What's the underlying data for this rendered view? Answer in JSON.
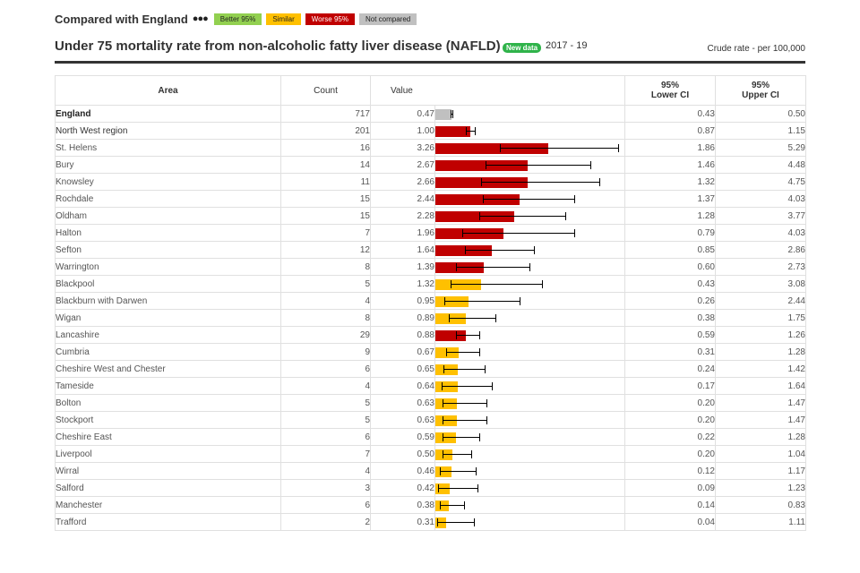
{
  "legend": {
    "title": "Compared with England",
    "menu_icon": "three-dots-menu-icon",
    "keys": [
      {
        "label": "Better 95%",
        "color": "#92d050"
      },
      {
        "label": "Similar",
        "color": "#ffc000"
      },
      {
        "label": "Worse 95%",
        "color": "#c00000",
        "text_color": "#ffffff"
      },
      {
        "label": "Not compared",
        "color": "#c0c0c0"
      }
    ]
  },
  "header": {
    "title": "Under 75 mortality rate from non-alcoholic fatty liver disease (NAFLD)",
    "badge": "New data",
    "period": "2017 - 19",
    "value_note": "Crude rate - per 100,000"
  },
  "columns": {
    "area": "Area",
    "count": "Count",
    "value": "Value",
    "lower_ci": [
      "95%",
      "Lower CI"
    ],
    "upper_ci": [
      "95%",
      "Upper CI"
    ]
  },
  "chart_data": {
    "type": "bar",
    "orientation": "horizontal",
    "x_range": [
      0,
      5.5
    ],
    "status_colors": {
      "worse": "#c00000",
      "similar": "#ffc000",
      "better": "#92d050",
      "none": "#c0c0c0"
    },
    "rows": [
      {
        "area": "England",
        "count": "717",
        "value": 0.47,
        "value_text": "0.47",
        "lower": "0.43",
        "upper": "0.50",
        "status": "none",
        "style": "bold"
      },
      {
        "area": "North West region",
        "count": "201",
        "value": 1.0,
        "value_text": "1.00",
        "lower": "0.87",
        "upper": "1.15",
        "status": "worse",
        "style": "plain"
      },
      {
        "area": "St. Helens",
        "count": "16",
        "value": 3.26,
        "value_text": "3.26",
        "lower": "1.86",
        "upper": "5.29",
        "status": "worse",
        "style": "link"
      },
      {
        "area": "Bury",
        "count": "14",
        "value": 2.67,
        "value_text": "2.67",
        "lower": "1.46",
        "upper": "4.48",
        "status": "worse",
        "style": "link"
      },
      {
        "area": "Knowsley",
        "count": "11",
        "value": 2.66,
        "value_text": "2.66",
        "lower": "1.32",
        "upper": "4.75",
        "status": "worse",
        "style": "link"
      },
      {
        "area": "Rochdale",
        "count": "15",
        "value": 2.44,
        "value_text": "2.44",
        "lower": "1.37",
        "upper": "4.03",
        "status": "worse",
        "style": "link"
      },
      {
        "area": "Oldham",
        "count": "15",
        "value": 2.28,
        "value_text": "2.28",
        "lower": "1.28",
        "upper": "3.77",
        "status": "worse",
        "style": "link"
      },
      {
        "area": "Halton",
        "count": "7",
        "value": 1.96,
        "value_text": "1.96",
        "lower": "0.79",
        "upper": "4.03",
        "status": "worse",
        "style": "link"
      },
      {
        "area": "Sefton",
        "count": "12",
        "value": 1.64,
        "value_text": "1.64",
        "lower": "0.85",
        "upper": "2.86",
        "status": "worse",
        "style": "link"
      },
      {
        "area": "Warrington",
        "count": "8",
        "value": 1.39,
        "value_text": "1.39",
        "lower": "0.60",
        "upper": "2.73",
        "status": "worse",
        "style": "link"
      },
      {
        "area": "Blackpool",
        "count": "5",
        "value": 1.32,
        "value_text": "1.32",
        "lower": "0.43",
        "upper": "3.08",
        "status": "similar",
        "style": "link"
      },
      {
        "area": "Blackburn with Darwen",
        "count": "4",
        "value": 0.95,
        "value_text": "0.95",
        "lower": "0.26",
        "upper": "2.44",
        "status": "similar",
        "style": "link"
      },
      {
        "area": "Wigan",
        "count": "8",
        "value": 0.89,
        "value_text": "0.89",
        "lower": "0.38",
        "upper": "1.75",
        "status": "similar",
        "style": "link"
      },
      {
        "area": "Lancashire",
        "count": "29",
        "value": 0.88,
        "value_text": "0.88",
        "lower": "0.59",
        "upper": "1.26",
        "status": "worse",
        "style": "link"
      },
      {
        "area": "Cumbria",
        "count": "9",
        "value": 0.67,
        "value_text": "0.67",
        "lower": "0.31",
        "upper": "1.28",
        "status": "similar",
        "style": "link"
      },
      {
        "area": "Cheshire West and Chester",
        "count": "6",
        "value": 0.65,
        "value_text": "0.65",
        "lower": "0.24",
        "upper": "1.42",
        "status": "similar",
        "style": "link"
      },
      {
        "area": "Tameside",
        "count": "4",
        "value": 0.64,
        "value_text": "0.64",
        "lower": "0.17",
        "upper": "1.64",
        "status": "similar",
        "style": "link"
      },
      {
        "area": "Bolton",
        "count": "5",
        "value": 0.63,
        "value_text": "0.63",
        "lower": "0.20",
        "upper": "1.47",
        "status": "similar",
        "style": "link"
      },
      {
        "area": "Stockport",
        "count": "5",
        "value": 0.63,
        "value_text": "0.63",
        "lower": "0.20",
        "upper": "1.47",
        "status": "similar",
        "style": "link"
      },
      {
        "area": "Cheshire East",
        "count": "6",
        "value": 0.59,
        "value_text": "0.59",
        "lower": "0.22",
        "upper": "1.28",
        "status": "similar",
        "style": "link"
      },
      {
        "area": "Liverpool",
        "count": "7",
        "value": 0.5,
        "value_text": "0.50",
        "lower": "0.20",
        "upper": "1.04",
        "status": "similar",
        "style": "link"
      },
      {
        "area": "Wirral",
        "count": "4",
        "value": 0.46,
        "value_text": "0.46",
        "lower": "0.12",
        "upper": "1.17",
        "status": "similar",
        "style": "link"
      },
      {
        "area": "Salford",
        "count": "3",
        "value": 0.42,
        "value_text": "0.42",
        "lower": "0.09",
        "upper": "1.23",
        "status": "similar",
        "style": "link"
      },
      {
        "area": "Manchester",
        "count": "6",
        "value": 0.38,
        "value_text": "0.38",
        "lower": "0.14",
        "upper": "0.83",
        "status": "similar",
        "style": "link"
      },
      {
        "area": "Trafford",
        "count": "2",
        "value": 0.31,
        "value_text": "0.31",
        "lower": "0.04",
        "upper": "1.11",
        "status": "similar",
        "style": "link"
      }
    ]
  }
}
